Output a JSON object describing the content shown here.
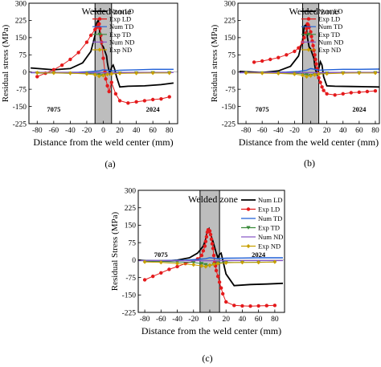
{
  "chart_data": [
    {
      "type": "line",
      "caption": "(a)",
      "xlabel": "Distance from the weld center (mm)",
      "ylabel": "Residual stress (MPa)",
      "xlim": [
        -90,
        90
      ],
      "ylim": [
        -225,
        300
      ],
      "xticks": [
        -80,
        -60,
        -40,
        -20,
        0,
        20,
        40,
        60,
        80
      ],
      "yticks": [
        -225,
        -150,
        -75,
        0,
        75,
        150,
        225,
        300
      ],
      "zone": {
        "label": "Welded zone",
        "x": [
          -10,
          10
        ]
      },
      "side_labels": {
        "left": "7075",
        "right": "2024"
      },
      "legend_position": "top-right",
      "series": [
        {
          "name": "Num LD",
          "color": "#000000",
          "marker": "none",
          "x": [
            -88,
            -60,
            -40,
            -25,
            -15,
            -10,
            -8,
            -6,
            -5,
            -4,
            -2,
            0,
            2,
            4,
            5,
            6,
            8,
            10,
            12,
            14,
            16,
            20,
            30,
            50,
            70,
            85
          ],
          "y": [
            18,
            10,
            15,
            40,
            90,
            160,
            215,
            225,
            200,
            160,
            120,
            110,
            90,
            70,
            40,
            20,
            -5,
            20,
            30,
            10,
            -20,
            -65,
            -62,
            -60,
            -55,
            -48
          ]
        },
        {
          "name": "Exp LD",
          "color": "#e41a1c",
          "marker": "circle",
          "x": [
            -80,
            -70,
            -60,
            -50,
            -40,
            -30,
            -20,
            -15,
            -10,
            -8,
            -6,
            -5,
            -4,
            -3,
            -2,
            0,
            2,
            3,
            5,
            7,
            10,
            15,
            20,
            30,
            40,
            50,
            60,
            70,
            80
          ],
          "y": [
            -20,
            -5,
            10,
            30,
            55,
            85,
            130,
            160,
            185,
            195,
            205,
            210,
            190,
            160,
            130,
            60,
            0,
            -30,
            -60,
            -85,
            -45,
            -95,
            -125,
            -135,
            -130,
            -125,
            -120,
            -117,
            -108
          ]
        },
        {
          "name": "Num TD",
          "color": "#1f5fd6",
          "marker": "none",
          "x": [
            -88,
            -60,
            -30,
            -15,
            -5,
            0,
            5,
            10,
            20,
            40,
            60,
            85
          ],
          "y": [
            -3,
            -3,
            -1,
            2,
            5,
            10,
            8,
            5,
            8,
            10,
            12,
            12
          ]
        },
        {
          "name": "Exp TD",
          "color": "#3a8a3a",
          "marker": "triangle-down",
          "x": [
            -80,
            -60,
            -40,
            -20,
            -10,
            -5,
            0,
            5,
            10,
            20,
            40,
            60,
            80
          ],
          "y": [
            -5,
            -4,
            -6,
            -5,
            -8,
            -10,
            -14,
            -10,
            -8,
            -5,
            -4,
            -3,
            -3
          ]
        },
        {
          "name": "Num ND",
          "color": "#8a5ac8",
          "marker": "none",
          "x": [
            -88,
            -60,
            -30,
            -10,
            0,
            10,
            30,
            60,
            85
          ],
          "y": [
            -2,
            -2,
            -2,
            -3,
            -3,
            -3,
            -2,
            -2,
            -2
          ]
        },
        {
          "name": "Exp ND",
          "color": "#c8a000",
          "marker": "diamond",
          "x": [
            -80,
            -60,
            -40,
            -20,
            -10,
            -5,
            0,
            5,
            10,
            20,
            40,
            60,
            80
          ],
          "y": [
            -3,
            -4,
            -5,
            -8,
            -12,
            -18,
            -15,
            -10,
            -8,
            -6,
            -5,
            -4,
            -4
          ]
        }
      ]
    },
    {
      "type": "line",
      "caption": "(b)",
      "xlabel": "Distance from the weld center (mm)",
      "ylabel": "Residual stress (MPa)",
      "xlim": [
        -90,
        85
      ],
      "ylim": [
        -225,
        300
      ],
      "xticks": [
        -80,
        -60,
        -40,
        -20,
        0,
        20,
        40,
        60,
        80
      ],
      "yticks": [
        -225,
        -150,
        -75,
        0,
        75,
        150,
        225,
        300
      ],
      "zone": {
        "label": "Welded zone",
        "x": [
          -10,
          10
        ]
      },
      "side_labels": {
        "left": "7075",
        "right": "2024"
      },
      "legend_position": "top-right",
      "series": [
        {
          "name": "Num LD",
          "color": "#000000",
          "marker": "none",
          "x": [
            -88,
            -60,
            -40,
            -25,
            -15,
            -10,
            -8,
            -6,
            -5,
            -4,
            -2,
            0,
            2,
            4,
            5,
            6,
            8,
            10,
            12,
            14,
            16,
            20,
            30,
            50,
            70,
            85
          ],
          "y": [
            3,
            -2,
            5,
            25,
            70,
            140,
            200,
            205,
            185,
            150,
            110,
            100,
            80,
            60,
            30,
            10,
            -10,
            15,
            45,
            30,
            -20,
            -60,
            -62,
            -63,
            -64,
            -65
          ]
        },
        {
          "name": "Exp LD",
          "color": "#e41a1c",
          "marker": "circle",
          "x": [
            -70,
            -60,
            -50,
            -40,
            -30,
            -20,
            -15,
            -10,
            -8,
            -6,
            -5,
            -4,
            -3,
            -2,
            0,
            1,
            2,
            3,
            4,
            5,
            6,
            7,
            8,
            9,
            10,
            12,
            14,
            16,
            20,
            30,
            40,
            50,
            60,
            70,
            80
          ],
          "y": [
            43,
            48,
            55,
            63,
            75,
            90,
            105,
            130,
            150,
            170,
            190,
            210,
            205,
            195,
            175,
            155,
            135,
            115,
            95,
            75,
            55,
            35,
            15,
            -5,
            -25,
            -45,
            -65,
            -80,
            -95,
            -100,
            -95,
            -90,
            -88,
            -85,
            -82
          ]
        },
        {
          "name": "Num TD",
          "color": "#1f5fd6",
          "marker": "none",
          "x": [
            -88,
            -60,
            -30,
            -15,
            -5,
            0,
            5,
            10,
            20,
            40,
            60,
            85
          ],
          "y": [
            -3,
            -2,
            0,
            3,
            8,
            15,
            12,
            8,
            10,
            12,
            12,
            13
          ]
        },
        {
          "name": "Exp TD",
          "color": "#3a8a3a",
          "marker": "triangle-down",
          "x": [
            -80,
            -60,
            -40,
            -20,
            -10,
            -5,
            0,
            5,
            10,
            20,
            40,
            60,
            80
          ],
          "y": [
            -4,
            -4,
            -5,
            -5,
            -8,
            -12,
            -15,
            -12,
            -8,
            -5,
            -4,
            -3,
            -3
          ]
        },
        {
          "name": "Num ND",
          "color": "#8a5ac8",
          "marker": "none",
          "x": [
            -88,
            -60,
            -30,
            -10,
            0,
            10,
            30,
            60,
            85
          ],
          "y": [
            -2,
            -2,
            -2,
            -3,
            -3,
            -3,
            -2,
            -2,
            -2
          ]
        },
        {
          "name": "Exp ND",
          "color": "#c8a000",
          "marker": "diamond",
          "x": [
            -80,
            -60,
            -40,
            -20,
            -10,
            -5,
            0,
            5,
            10,
            20,
            40,
            60,
            80
          ],
          "y": [
            -4,
            -5,
            -6,
            -9,
            -14,
            -20,
            -16,
            -12,
            -9,
            -7,
            -5,
            -4,
            -4
          ]
        }
      ]
    },
    {
      "type": "line",
      "caption": "(c)",
      "xlabel": "Distance from the weld center (mm)",
      "ylabel": "Residual Stress (MPa)",
      "xlim": [
        -88,
        92
      ],
      "ylim": [
        -225,
        300
      ],
      "xticks": [
        -80,
        -60,
        -40,
        -20,
        0,
        20,
        40,
        60,
        80
      ],
      "yticks": [
        -225,
        -150,
        -75,
        0,
        75,
        150,
        225,
        300
      ],
      "zone": {
        "label": "Welded zone",
        "x": [
          -12,
          12
        ]
      },
      "side_labels": {
        "left": "7075",
        "right": "2024"
      },
      "legend_position": "top-right",
      "series": [
        {
          "name": "Num LD",
          "color": "#000000",
          "marker": "none",
          "x": [
            -88,
            -60,
            -40,
            -25,
            -15,
            -8,
            -5,
            -3,
            -1,
            0,
            2,
            4,
            6,
            8,
            10,
            12,
            14,
            16,
            20,
            30,
            50,
            70,
            90
          ],
          "y": [
            0,
            -5,
            0,
            10,
            30,
            60,
            90,
            125,
            135,
            120,
            100,
            80,
            55,
            30,
            10,
            25,
            30,
            0,
            -60,
            -110,
            -105,
            -103,
            -100
          ]
        },
        {
          "name": "Exp LD",
          "color": "#e41a1c",
          "marker": "circle",
          "x": [
            -80,
            -70,
            -60,
            -50,
            -40,
            -30,
            -20,
            -15,
            -10,
            -8,
            -6,
            -5,
            -4,
            -3,
            -2,
            -1,
            0,
            1,
            2,
            3,
            4,
            5,
            6,
            7,
            8,
            10,
            12,
            14,
            16,
            20,
            30,
            40,
            50,
            60,
            70,
            80
          ],
          "y": [
            -85,
            -70,
            -55,
            -40,
            -28,
            -15,
            -5,
            5,
            20,
            40,
            60,
            80,
            100,
            120,
            130,
            128,
            125,
            110,
            90,
            70,
            50,
            20,
            -10,
            -25,
            -45,
            -70,
            -95,
            -120,
            -145,
            -180,
            -195,
            -197,
            -198,
            -197,
            -196,
            -195
          ]
        },
        {
          "name": "Num TD",
          "color": "#1f5fd6",
          "marker": "none",
          "x": [
            -88,
            -60,
            -30,
            -15,
            -5,
            0,
            5,
            10,
            20,
            40,
            60,
            90
          ],
          "y": [
            -2,
            -2,
            0,
            3,
            6,
            10,
            8,
            6,
            8,
            9,
            10,
            10
          ]
        },
        {
          "name": "Exp TD",
          "color": "#3a8a3a",
          "marker": "triangle-down",
          "x": [
            -80,
            -60,
            -40,
            -20,
            -10,
            -5,
            0,
            5,
            10,
            20,
            40,
            60,
            80
          ],
          "y": [
            -6,
            -6,
            -8,
            -10,
            -15,
            -20,
            -25,
            -18,
            -12,
            -10,
            -10,
            -9,
            -8
          ]
        },
        {
          "name": "Num ND",
          "color": "#8a5ac8",
          "marker": "none",
          "x": [
            -88,
            -60,
            -30,
            -10,
            0,
            10,
            30,
            60,
            90
          ],
          "y": [
            -2,
            -2,
            -3,
            -3,
            -3,
            -3,
            -2,
            -2,
            -2
          ]
        },
        {
          "name": "Exp ND",
          "color": "#c8a000",
          "marker": "diamond",
          "x": [
            -80,
            -60,
            -40,
            -20,
            -10,
            -5,
            0,
            5,
            10,
            20,
            40,
            60,
            80
          ],
          "y": [
            -8,
            -10,
            -15,
            -20,
            -25,
            -28,
            -22,
            -18,
            -15,
            -12,
            -10,
            -10,
            -8
          ]
        }
      ]
    }
  ]
}
